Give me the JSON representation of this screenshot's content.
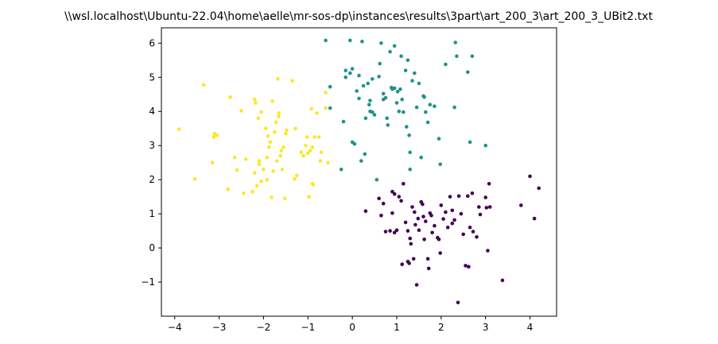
{
  "chart_data": {
    "type": "scatter",
    "title": "\\\\wsl.localhost\\Ubuntu-22.04\\home\\aelle\\mr-sos-dp\\instances\\results\\3part\\art_200_3\\art_200_3_UBit2.txt",
    "xlabel": "",
    "ylabel": "",
    "xlim": [
      -4.3,
      4.6
    ],
    "ylim": [
      -2.0,
      6.45
    ],
    "xticks": [
      -4,
      -3,
      -2,
      -1,
      0,
      1,
      2,
      3,
      4
    ],
    "yticks": [
      -1,
      0,
      1,
      2,
      3,
      4,
      5,
      6
    ],
    "grid": false,
    "series": [
      {
        "color": "#fde725",
        "points": [
          [
            -3.9,
            3.48
          ],
          [
            -3.55,
            2.02
          ],
          [
            -3.35,
            4.78
          ],
          [
            -3.15,
            2.5
          ],
          [
            -3.1,
            3.35
          ],
          [
            -3.12,
            3.25
          ],
          [
            -3.05,
            3.3
          ],
          [
            -2.8,
            1.72
          ],
          [
            -2.75,
            4.42
          ],
          [
            -2.65,
            2.65
          ],
          [
            -2.6,
            2.28
          ],
          [
            -2.5,
            4.02
          ],
          [
            -2.45,
            1.6
          ],
          [
            -2.4,
            2.6
          ],
          [
            -2.25,
            1.65
          ],
          [
            -2.2,
            2.2
          ],
          [
            -2.2,
            4.35
          ],
          [
            -2.18,
            4.25
          ],
          [
            -2.15,
            1.82
          ],
          [
            -2.12,
            3.8
          ],
          [
            -2.1,
            2.55
          ],
          [
            -2.1,
            2.45
          ],
          [
            -2.05,
            1.95
          ],
          [
            -2.05,
            3.98
          ],
          [
            -2.0,
            2.3
          ],
          [
            -1.95,
            3.5
          ],
          [
            -1.92,
            2.65
          ],
          [
            -1.9,
            3.28
          ],
          [
            -1.88,
            2.95
          ],
          [
            -1.85,
            3.1
          ],
          [
            -1.82,
            1.48
          ],
          [
            -1.8,
            4.3
          ],
          [
            -1.78,
            2.25
          ],
          [
            -1.75,
            3.4
          ],
          [
            -1.72,
            3.68
          ],
          [
            -1.7,
            2.55
          ],
          [
            -1.68,
            4.95
          ],
          [
            -1.66,
            3.85
          ],
          [
            -1.65,
            3.95
          ],
          [
            -1.62,
            2.7
          ],
          [
            -1.6,
            2.85
          ],
          [
            -1.58,
            2.3
          ],
          [
            -1.55,
            2.95
          ],
          [
            -1.52,
            1.45
          ],
          [
            -1.5,
            3.35
          ],
          [
            -1.48,
            3.45
          ],
          [
            -1.35,
            4.9
          ],
          [
            -1.3,
            2.02
          ],
          [
            -1.28,
            3.5
          ],
          [
            -1.25,
            2.12
          ],
          [
            -1.15,
            2.8
          ],
          [
            -1.1,
            2.7
          ],
          [
            -1.05,
            3.0
          ],
          [
            -1.02,
            3.25
          ],
          [
            -1.0,
            2.78
          ],
          [
            -0.98,
            1.5
          ],
          [
            -0.95,
            2.85
          ],
          [
            -0.92,
            4.08
          ],
          [
            -0.9,
            2.95
          ],
          [
            -0.88,
            1.85
          ],
          [
            -0.85,
            3.25
          ],
          [
            -0.8,
            3.95
          ],
          [
            -0.75,
            3.25
          ],
          [
            -0.72,
            2.55
          ],
          [
            -0.7,
            2.8
          ],
          [
            -0.6,
            4.1
          ],
          [
            -0.6,
            4.55
          ],
          [
            -0.55,
            2.5
          ],
          [
            -0.9,
            1.88
          ],
          [
            -1.92,
            2.0
          ]
        ]
      },
      {
        "color": "#21918c",
        "points": [
          [
            -0.6,
            6.08
          ],
          [
            -0.5,
            4.72
          ],
          [
            -0.5,
            4.1
          ],
          [
            -0.25,
            2.3
          ],
          [
            -0.2,
            3.7
          ],
          [
            -0.15,
            5.2
          ],
          [
            -0.15,
            5.0
          ],
          [
            -0.05,
            5.12
          ],
          [
            -0.05,
            6.08
          ],
          [
            0.0,
            3.1
          ],
          [
            0.0,
            5.25
          ],
          [
            0.05,
            3.05
          ],
          [
            0.1,
            4.6
          ],
          [
            0.15,
            4.38
          ],
          [
            0.15,
            5.05
          ],
          [
            0.2,
            2.55
          ],
          [
            0.22,
            6.05
          ],
          [
            0.25,
            4.75
          ],
          [
            0.28,
            2.75
          ],
          [
            0.3,
            3.8
          ],
          [
            0.35,
            4.82
          ],
          [
            0.38,
            4.2
          ],
          [
            0.4,
            4.0
          ],
          [
            0.4,
            4.32
          ],
          [
            0.45,
            3.98
          ],
          [
            0.45,
            4.95
          ],
          [
            0.5,
            3.9
          ],
          [
            0.55,
            2.0
          ],
          [
            0.6,
            5.02
          ],
          [
            0.62,
            5.4
          ],
          [
            0.65,
            6.0
          ],
          [
            0.7,
            4.35
          ],
          [
            0.7,
            4.52
          ],
          [
            0.75,
            4.4
          ],
          [
            0.78,
            3.8
          ],
          [
            0.8,
            3.6
          ],
          [
            0.85,
            5.75
          ],
          [
            0.88,
            4.7
          ],
          [
            0.9,
            4.65
          ],
          [
            0.95,
            4.68
          ],
          [
            0.95,
            5.92
          ],
          [
            1.0,
            4.25
          ],
          [
            1.02,
            4.58
          ],
          [
            1.05,
            4.0
          ],
          [
            1.08,
            4.65
          ],
          [
            1.1,
            5.62
          ],
          [
            1.12,
            4.35
          ],
          [
            1.15,
            3.98
          ],
          [
            1.2,
            5.2
          ],
          [
            1.22,
            3.55
          ],
          [
            1.25,
            5.5
          ],
          [
            1.28,
            3.3
          ],
          [
            1.3,
            2.8
          ],
          [
            1.3,
            2.3
          ],
          [
            1.35,
            4.9
          ],
          [
            1.4,
            5.12
          ],
          [
            1.45,
            4.12
          ],
          [
            1.5,
            4.82
          ],
          [
            1.55,
            2.65
          ],
          [
            1.6,
            4.45
          ],
          [
            1.62,
            4.42
          ],
          [
            1.65,
            3.98
          ],
          [
            1.7,
            3.68
          ],
          [
            1.75,
            4.2
          ],
          [
            1.85,
            4.15
          ],
          [
            1.95,
            3.2
          ],
          [
            1.98,
            2.45
          ],
          [
            2.1,
            5.38
          ],
          [
            2.3,
            4.12
          ],
          [
            2.32,
            6.02
          ],
          [
            2.35,
            5.62
          ],
          [
            2.6,
            5.15
          ],
          [
            2.65,
            3.1
          ],
          [
            2.7,
            5.62
          ],
          [
            3.0,
            3.0
          ]
        ]
      },
      {
        "color": "#440154",
        "points": [
          [
            0.3,
            1.08
          ],
          [
            0.6,
            1.45
          ],
          [
            0.65,
            0.95
          ],
          [
            0.7,
            1.3
          ],
          [
            0.75,
            0.48
          ],
          [
            0.85,
            0.5
          ],
          [
            0.9,
            1.65
          ],
          [
            0.9,
            1.02
          ],
          [
            0.95,
            1.58
          ],
          [
            0.95,
            0.45
          ],
          [
            1.0,
            0.52
          ],
          [
            1.05,
            1.5
          ],
          [
            1.1,
            1.38
          ],
          [
            1.12,
            -0.48
          ],
          [
            1.15,
            1.88
          ],
          [
            1.2,
            0.75
          ],
          [
            1.25,
            0.5
          ],
          [
            1.28,
            -0.45
          ],
          [
            1.3,
            0.28
          ],
          [
            1.32,
            0.12
          ],
          [
            1.35,
            1.2
          ],
          [
            1.38,
            -0.32
          ],
          [
            1.4,
            1.05
          ],
          [
            1.42,
            0.68
          ],
          [
            1.45,
            -1.08
          ],
          [
            1.48,
            0.86
          ],
          [
            1.5,
            0.52
          ],
          [
            1.55,
            1.35
          ],
          [
            1.58,
            1.28
          ],
          [
            1.6,
            0.92
          ],
          [
            1.62,
            0.25
          ],
          [
            1.65,
            0.78
          ],
          [
            1.7,
            -0.32
          ],
          [
            1.72,
            -0.6
          ],
          [
            1.75,
            1.02
          ],
          [
            1.78,
            0.95
          ],
          [
            1.8,
            0.45
          ],
          [
            1.85,
            0.65
          ],
          [
            1.92,
            0.3
          ],
          [
            1.95,
            0.25
          ],
          [
            1.98,
            -0.15
          ],
          [
            2.0,
            1.25
          ],
          [
            2.05,
            0.85
          ],
          [
            2.1,
            1.05
          ],
          [
            2.15,
            0.6
          ],
          [
            2.2,
            1.5
          ],
          [
            2.25,
            1.1
          ],
          [
            2.3,
            0.82
          ],
          [
            2.4,
            1.52
          ],
          [
            2.45,
            1.0
          ],
          [
            2.5,
            0.4
          ],
          [
            2.55,
            -0.52
          ],
          [
            2.6,
            1.52
          ],
          [
            2.62,
            -0.55
          ],
          [
            2.65,
            0.6
          ],
          [
            2.7,
            1.6
          ],
          [
            2.72,
            0.48
          ],
          [
            2.8,
            0.32
          ],
          [
            2.85,
            1.2
          ],
          [
            2.88,
            0.98
          ],
          [
            3.0,
            1.48
          ],
          [
            3.02,
            1.18
          ],
          [
            3.05,
            -0.08
          ],
          [
            3.08,
            1.88
          ],
          [
            3.1,
            1.2
          ],
          [
            2.38,
            -1.6
          ],
          [
            3.38,
            -0.95
          ],
          [
            3.8,
            1.25
          ],
          [
            4.0,
            2.1
          ],
          [
            4.1,
            0.86
          ],
          [
            4.2,
            1.75
          ],
          [
            1.25,
            -0.4
          ],
          [
            2.25,
            0.72
          ]
        ]
      }
    ]
  }
}
